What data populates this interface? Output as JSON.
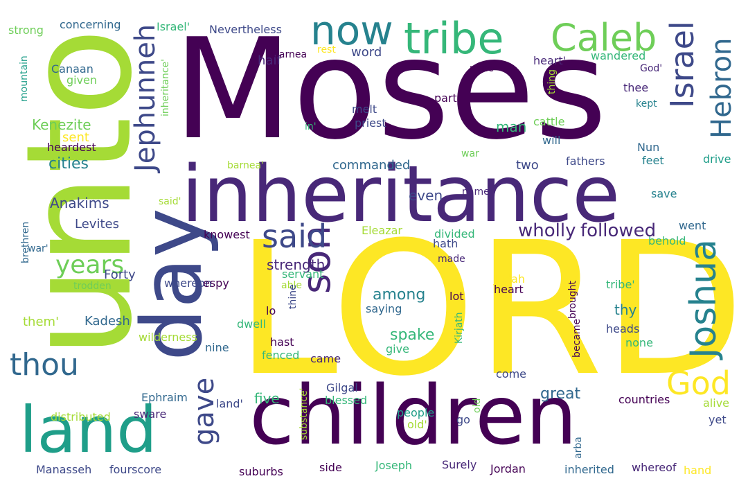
{
  "background": "#ffffff",
  "words": [
    {
      "text": "Moses",
      "color": "#440154"
    },
    {
      "text": "LORD",
      "color": "#fde725"
    },
    {
      "text": "unto",
      "color": "#a5db36"
    },
    {
      "text": "inheritance",
      "color": "#482878"
    },
    {
      "text": "children",
      "color": "#440154"
    },
    {
      "text": "day",
      "color": "#3e4989"
    },
    {
      "text": "land",
      "color": "#1f9e89"
    },
    {
      "text": "now",
      "color": "#26828e"
    },
    {
      "text": "tribe",
      "color": "#35b779"
    },
    {
      "text": "Caleb",
      "color": "#6ece58"
    },
    {
      "text": "Israel",
      "color": "#3e4989"
    },
    {
      "text": "Hebron",
      "color": "#31688e"
    },
    {
      "text": "Jephunneh",
      "color": "#3e4989"
    },
    {
      "text": "son",
      "color": "#482878"
    },
    {
      "text": "Joshua",
      "color": "#26828e"
    },
    {
      "text": "said",
      "color": "#3e4989"
    },
    {
      "text": "God",
      "color": "#fde725"
    },
    {
      "text": "gave",
      "color": "#3e4989"
    },
    {
      "text": "thou",
      "color": "#31688e"
    },
    {
      "text": "years",
      "color": "#6ece58"
    },
    {
      "text": "wholly",
      "color": "#482878"
    },
    {
      "text": "followed",
      "color": "#482878"
    },
    {
      "text": "Forty",
      "color": "#3e4989"
    },
    {
      "text": "strength",
      "color": "#482878"
    },
    {
      "text": "Kenezite",
      "color": "#6ece58"
    },
    {
      "text": "Anakims",
      "color": "#3e4989"
    },
    {
      "text": "Levites",
      "color": "#3e4989"
    },
    {
      "text": "cities",
      "color": "#26828e"
    },
    {
      "text": "commanded",
      "color": "#31688e"
    },
    {
      "text": "sent",
      "color": "#fde725"
    },
    {
      "text": "Kadesh",
      "color": "#31688e"
    },
    {
      "text": "them'",
      "color": "#a5db36"
    },
    {
      "text": "man",
      "color": "#35b779"
    },
    {
      "text": "word",
      "color": "#3e4989"
    },
    {
      "text": "half",
      "color": "#482878"
    },
    {
      "text": "among",
      "color": "#26828e"
    },
    {
      "text": "thy",
      "color": "#26828e"
    },
    {
      "text": "spake",
      "color": "#35b779"
    },
    {
      "text": "two",
      "color": "#3e4989"
    },
    {
      "text": "even",
      "color": "#3e4989"
    },
    {
      "text": "great",
      "color": "#31688e"
    },
    {
      "text": "five",
      "color": "#35b779"
    },
    {
      "text": "Canaan",
      "color": "#31688e"
    },
    {
      "text": "given",
      "color": "#6ece58"
    },
    {
      "text": "strong",
      "color": "#6ece58"
    },
    {
      "text": "concerning",
      "color": "#31688e"
    },
    {
      "text": "Israel'",
      "color": "#35b779"
    },
    {
      "text": "Nevertheless",
      "color": "#3e4989"
    },
    {
      "text": "barnea",
      "color": "#440154"
    },
    {
      "text": "rest",
      "color": "#fde725"
    },
    {
      "text": "mountain",
      "color": "#1f9e89"
    },
    {
      "text": "inheritance'",
      "color": "#6ece58"
    },
    {
      "text": "wandered",
      "color": "#35b779"
    },
    {
      "text": "heart'",
      "color": "#482878"
    },
    {
      "text": "God'",
      "color": "#482878"
    },
    {
      "text": "mine",
      "color": "#440154"
    },
    {
      "text": "thing",
      "color": "#a5db36"
    },
    {
      "text": "part",
      "color": "#440154"
    },
    {
      "text": "thee",
      "color": "#482878"
    },
    {
      "text": "kept",
      "color": "#26828e"
    },
    {
      "text": "melt",
      "color": "#3e4989"
    },
    {
      "text": "priest",
      "color": "#3e4989"
    },
    {
      "text": "in'",
      "color": "#35b779"
    },
    {
      "text": "cattle",
      "color": "#6ece58"
    },
    {
      "text": "will",
      "color": "#31688e"
    },
    {
      "text": "heardest",
      "color": "#440154"
    },
    {
      "text": "Nun",
      "color": "#31688e"
    },
    {
      "text": "war",
      "color": "#6ece58"
    },
    {
      "text": "fathers",
      "color": "#3e4989"
    },
    {
      "text": "feet",
      "color": "#26828e"
    },
    {
      "text": "drive",
      "color": "#1f9e89"
    },
    {
      "text": "barnea'",
      "color": "#a5db36"
    },
    {
      "text": "name",
      "color": "#482878"
    },
    {
      "text": "save",
      "color": "#26828e"
    },
    {
      "text": "said'",
      "color": "#a5db36"
    },
    {
      "text": "divided",
      "color": "#35b779"
    },
    {
      "text": "went",
      "color": "#31688e"
    },
    {
      "text": "knowest",
      "color": "#440154"
    },
    {
      "text": "Eleazar",
      "color": "#a5db36"
    },
    {
      "text": "hath",
      "color": "#3e4989"
    },
    {
      "text": "behold",
      "color": "#35b779"
    },
    {
      "text": "brethren",
      "color": "#31688e"
    },
    {
      "text": "war'",
      "color": "#31688e"
    },
    {
      "text": "made",
      "color": "#482878"
    },
    {
      "text": "servant",
      "color": "#35b779"
    },
    {
      "text": "whereon",
      "color": "#3e4989"
    },
    {
      "text": "espy",
      "color": "#440154"
    },
    {
      "text": "able",
      "color": "#a5db36"
    },
    {
      "text": "trodden",
      "color": "#6ece58"
    },
    {
      "text": "Judah",
      "color": "#fde725"
    },
    {
      "text": "heart",
      "color": "#440154"
    },
    {
      "text": "tribe'",
      "color": "#35b779"
    },
    {
      "text": "lot",
      "color": "#440154"
    },
    {
      "text": "brought",
      "color": "#440154"
    },
    {
      "text": "thine",
      "color": "#3e4989"
    },
    {
      "text": "lo",
      "color": "#440154"
    },
    {
      "text": "saying",
      "color": "#31688e"
    },
    {
      "text": "dwell",
      "color": "#35b779"
    },
    {
      "text": "hast",
      "color": "#440154"
    },
    {
      "text": "heads",
      "color": "#3e4989"
    },
    {
      "text": "became",
      "color": "#440154"
    },
    {
      "text": "none",
      "color": "#35b779"
    },
    {
      "text": "Kirjath",
      "color": "#35b779"
    },
    {
      "text": "wilderness",
      "color": "#a5db36"
    },
    {
      "text": "give",
      "color": "#35b779"
    },
    {
      "text": "nine",
      "color": "#31688e"
    },
    {
      "text": "fenced",
      "color": "#35b779"
    },
    {
      "text": "came",
      "color": "#482878"
    },
    {
      "text": "come",
      "color": "#3e4989"
    },
    {
      "text": "Gilgal",
      "color": "#3e4989"
    },
    {
      "text": "blessed",
      "color": "#35b779"
    },
    {
      "text": "Ephraim",
      "color": "#31688e"
    },
    {
      "text": "land'",
      "color": "#3e4989"
    },
    {
      "text": "substance'",
      "color": "#a5db36"
    },
    {
      "text": "people",
      "color": "#1f9e89"
    },
    {
      "text": "old'",
      "color": "#a5db36"
    },
    {
      "text": "old",
      "color": "#6ece58"
    },
    {
      "text": "countries",
      "color": "#440154"
    },
    {
      "text": "alive",
      "color": "#a5db36"
    },
    {
      "text": "distributed",
      "color": "#a5db36"
    },
    {
      "text": "sware",
      "color": "#482878"
    },
    {
      "text": "go",
      "color": "#3e4989"
    },
    {
      "text": "arba",
      "color": "#31688e"
    },
    {
      "text": "yet",
      "color": "#3e4989"
    },
    {
      "text": "Manasseh",
      "color": "#3e4989"
    },
    {
      "text": "fourscore",
      "color": "#3e4989"
    },
    {
      "text": "suburbs",
      "color": "#440154"
    },
    {
      "text": "side",
      "color": "#440154"
    },
    {
      "text": "Joseph",
      "color": "#35b779"
    },
    {
      "text": "Surely",
      "color": "#482878"
    },
    {
      "text": "Jordan",
      "color": "#440154"
    },
    {
      "text": "inherited",
      "color": "#31688e"
    },
    {
      "text": "whereof",
      "color": "#482878"
    },
    {
      "text": "hand",
      "color": "#fde725"
    }
  ]
}
